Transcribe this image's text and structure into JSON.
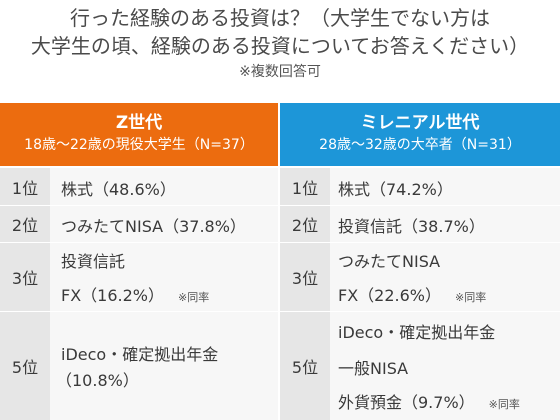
{
  "title": {
    "line1": "行った経験のある投資は？（大学生でない方は",
    "line2": "大学生の頃、経験のある投資についてお答えください）",
    "note": "※複数回答可"
  },
  "gen_z": {
    "name": "Z世代",
    "sub": "18歳〜22歳の現役大学生（N=37）",
    "rows": [
      {
        "rank": "1位",
        "items": [
          "株式（48.6%）"
        ]
      },
      {
        "rank": "2位",
        "items": [
          "つみたてNISA（37.8%）"
        ]
      },
      {
        "rank": "3位",
        "items": [
          "投資信託",
          "FX（16.2%）"
        ],
        "note": "※同率"
      },
      {
        "rank": "5位",
        "items": [
          "iDeco・確定拠出年金",
          "（10.8%）"
        ]
      }
    ]
  },
  "millennial": {
    "name": "ミレニアル世代",
    "sub": "28歳〜32歳の大卒者（N=31）",
    "rows": [
      {
        "rank": "1位",
        "items": [
          "株式（74.2%）"
        ]
      },
      {
        "rank": "2位",
        "items": [
          "投資信託（38.7%）"
        ]
      },
      {
        "rank": "3位",
        "items": [
          "つみたてNISA",
          "FX（22.6%）"
        ],
        "note": "※同率"
      },
      {
        "rank": "5位",
        "items": [
          "iDeco・確定拠出年金",
          "一般NISA",
          "外貨預金（9.7%）"
        ],
        "note": "※同率"
      }
    ]
  }
}
